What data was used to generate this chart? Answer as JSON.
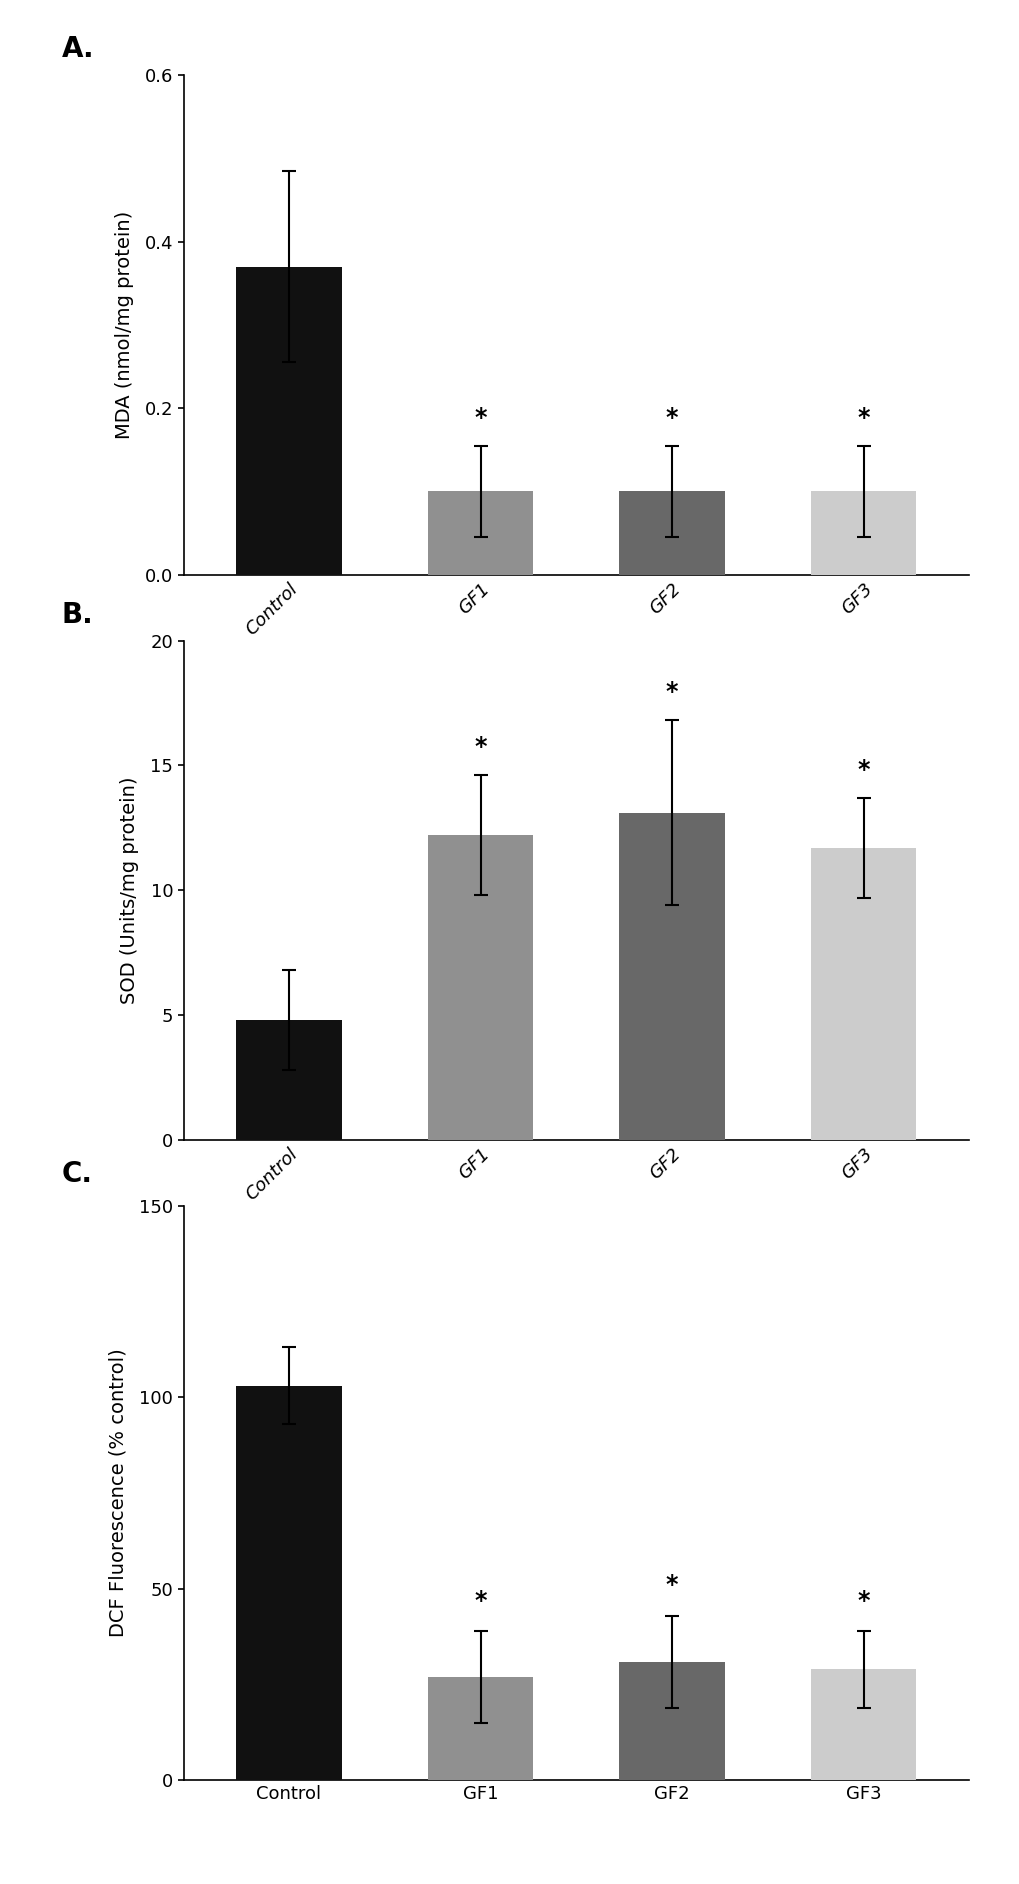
{
  "panel_A": {
    "label": "A.",
    "categories": [
      "Control",
      "GF1",
      "GF2",
      "GF3"
    ],
    "values": [
      0.37,
      0.1,
      0.1,
      0.1
    ],
    "errors": [
      0.115,
      0.055,
      0.055,
      0.055
    ],
    "bar_colors": [
      "#111111",
      "#909090",
      "#686868",
      "#cccccc"
    ],
    "ylabel": "MDA (nmol/mg protein)",
    "ylim": [
      0,
      0.6
    ],
    "yticks": [
      0.0,
      0.2,
      0.4,
      0.6
    ],
    "significance": [
      false,
      true,
      true,
      true
    ],
    "sig_symbol": "*",
    "italic_xticks": true
  },
  "panel_B": {
    "label": "B.",
    "categories": [
      "Control",
      "GF1",
      "GF2",
      "GF3"
    ],
    "values": [
      4.8,
      12.2,
      13.1,
      11.7
    ],
    "errors": [
      2.0,
      2.4,
      3.7,
      2.0
    ],
    "bar_colors": [
      "#111111",
      "#909090",
      "#686868",
      "#cccccc"
    ],
    "ylabel": "SOD (Units/mg protein)",
    "ylim": [
      0,
      20
    ],
    "yticks": [
      0,
      5,
      10,
      15,
      20
    ],
    "significance": [
      false,
      true,
      true,
      true
    ],
    "sig_symbol": "*",
    "italic_xticks": true
  },
  "panel_C": {
    "label": "C.",
    "categories": [
      "Control",
      "GF1",
      "GF2",
      "GF3"
    ],
    "values": [
      103,
      27,
      31,
      29
    ],
    "errors": [
      10,
      12,
      12,
      10
    ],
    "bar_colors": [
      "#111111",
      "#909090",
      "#686868",
      "#cccccc"
    ],
    "ylabel": "DCF Fluorescence (% control)",
    "ylim": [
      0,
      150
    ],
    "yticks": [
      0,
      50,
      100,
      150
    ],
    "significance": [
      false,
      true,
      true,
      true
    ],
    "sig_symbol": "*",
    "italic_xticks": false
  },
  "tick_fontsize": 13,
  "label_fontsize": 14,
  "panel_label_fontsize": 20,
  "sig_fontsize": 17,
  "bar_width": 0.55,
  "background_color": "#ffffff"
}
